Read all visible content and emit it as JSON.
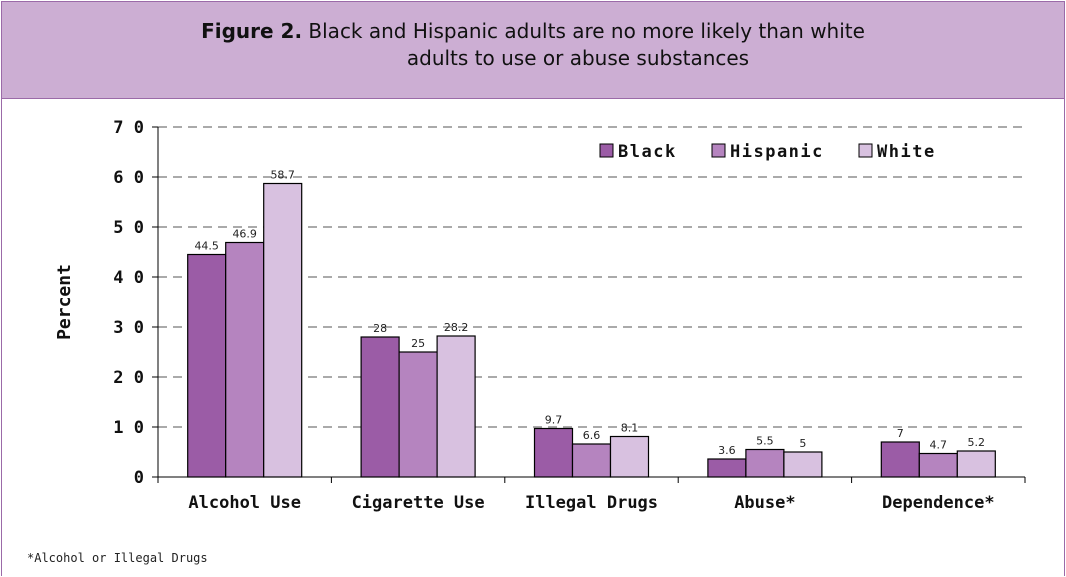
{
  "figure": {
    "label": "Figure 2.",
    "title_line1": "Black and Hispanic adults are no more likely than white",
    "title_line2": "adults to use or abuse substances",
    "footnote": "*Alcohol or Illegal Drugs"
  },
  "chart_data": {
    "type": "bar",
    "categories": [
      "Alcohol Use",
      "Cigarette Use",
      "Illegal Drugs",
      "Abuse*",
      "Dependence*"
    ],
    "series": [
      {
        "name": "Black",
        "values": [
          44.5,
          28,
          9.7,
          3.6,
          7
        ],
        "labels": [
          "44.5",
          "28",
          "9.7",
          "3.6",
          "7"
        ],
        "color": "#9b5ca6"
      },
      {
        "name": "Hispanic",
        "values": [
          46.9,
          25,
          6.6,
          5.5,
          4.7
        ],
        "labels": [
          "46.9",
          "25",
          "6.6",
          "5.5",
          "4.7"
        ],
        "color": "#b584bf"
      },
      {
        "name": "White",
        "values": [
          58.7,
          28.2,
          8.1,
          5,
          5.2
        ],
        "labels": [
          "58.7",
          "28.2",
          "8.1",
          "5",
          "5.2"
        ],
        "color": "#d8c1e0"
      }
    ],
    "ylabel": "Percent",
    "ylim": [
      0,
      70
    ],
    "yticks": [
      0,
      10,
      20,
      30,
      40,
      50,
      60,
      70
    ],
    "ytick_labels": [
      "0",
      "1 0",
      "2 0",
      "3 0",
      "4 0",
      "5 0",
      "6 0",
      "7 0"
    ],
    "grid": "dashed horizontal",
    "legend": "top-right",
    "header_color": "#ccaed3",
    "border_color": "#9b6aa8"
  }
}
